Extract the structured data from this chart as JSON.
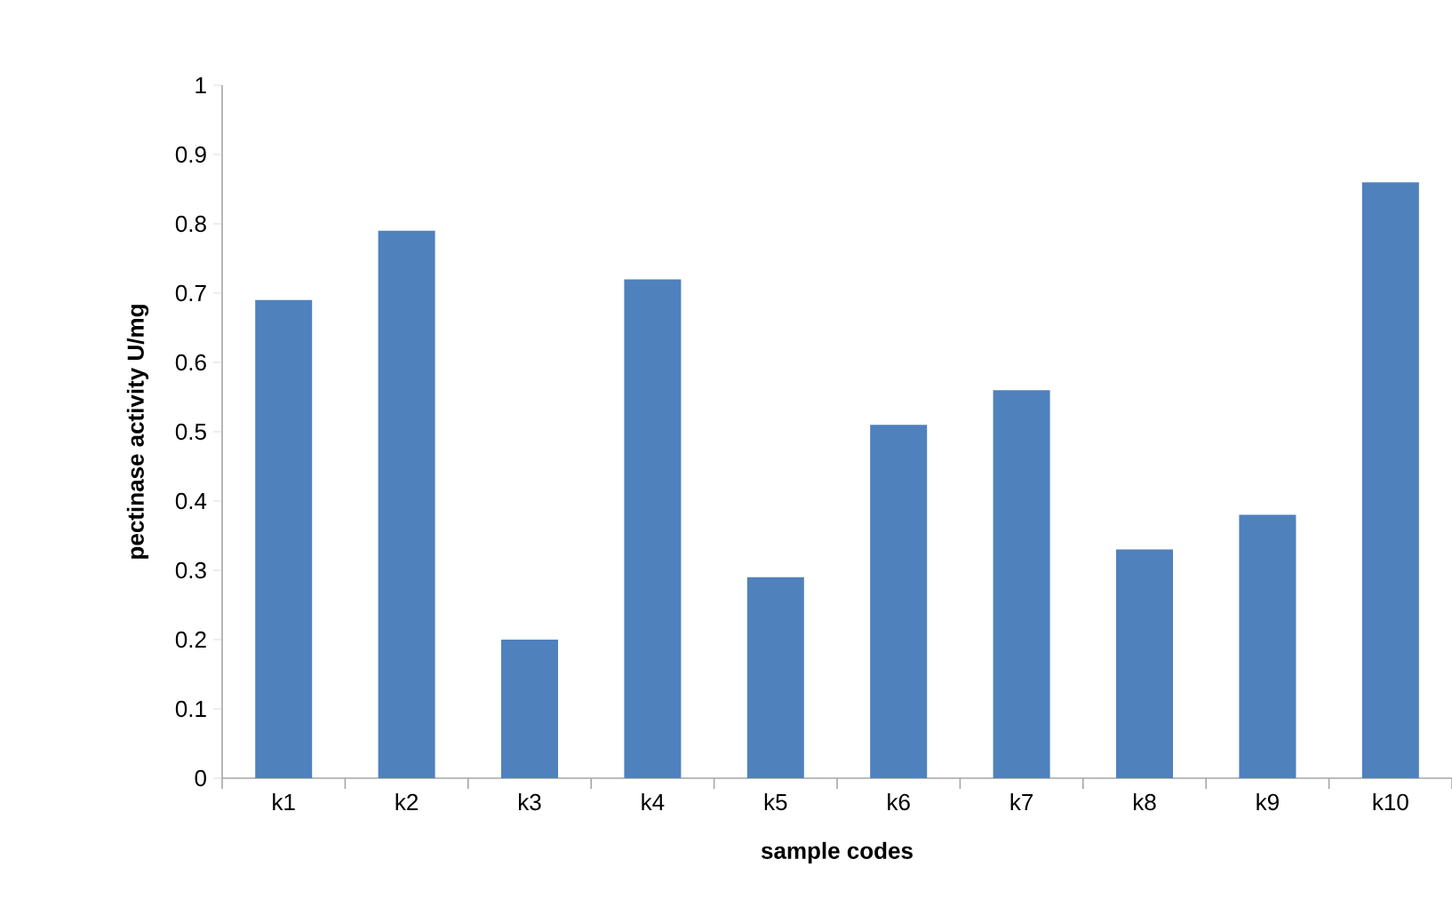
{
  "chart_data": {
    "type": "bar",
    "xlabel": "sample codes",
    "ylabel": "pectinase activity U/mg",
    "categories": [
      "k1",
      "k2",
      "k3",
      "k4",
      "k5",
      "k6",
      "k7",
      "k8",
      "k9",
      "k10"
    ],
    "values": [
      0.69,
      0.79,
      0.2,
      0.72,
      0.29,
      0.51,
      0.56,
      0.33,
      0.38,
      0.86
    ],
    "color": "#4f81bd",
    "ylim": [
      0,
      1
    ],
    "yticks": [
      0,
      0.1,
      0.2,
      0.3,
      0.4,
      0.5,
      0.6,
      0.7,
      0.8,
      0.9,
      1
    ],
    "grid": false
  }
}
